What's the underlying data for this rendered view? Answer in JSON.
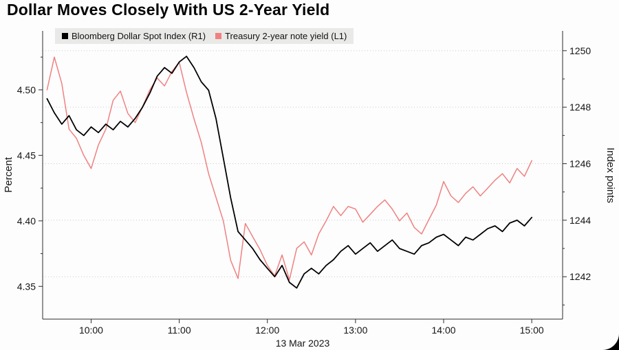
{
  "title": "Dollar Moves Closely With US 2-Year Yield",
  "legend": {
    "items": [
      {
        "label": "Bloomberg Dollar Spot Index (R1)",
        "color": "#000000"
      },
      {
        "label": "Treasury 2-year note yield (L1)",
        "color": "#f08080"
      }
    ]
  },
  "chart_data": {
    "type": "line",
    "title": "Dollar Moves Closely With US 2-Year Yield",
    "x_unit": "hour of day (decimal)",
    "x": [
      9.5,
      9.583,
      9.667,
      9.75,
      9.833,
      9.917,
      10.0,
      10.083,
      10.167,
      10.25,
      10.333,
      10.417,
      10.5,
      10.583,
      10.667,
      10.75,
      10.833,
      10.917,
      11.0,
      11.083,
      11.167,
      11.25,
      11.333,
      11.417,
      11.5,
      11.583,
      11.667,
      11.75,
      11.833,
      11.917,
      12.0,
      12.083,
      12.167,
      12.25,
      12.333,
      12.417,
      12.5,
      12.583,
      12.667,
      12.75,
      12.833,
      12.917,
      13.0,
      13.083,
      13.167,
      13.25,
      13.333,
      13.417,
      13.5,
      13.583,
      13.667,
      13.75,
      13.833,
      13.917,
      14.0,
      14.083,
      14.167,
      14.25,
      14.333,
      14.417,
      14.5,
      14.583,
      14.667,
      14.75,
      14.833,
      14.917,
      15.0
    ],
    "series": [
      {
        "name": "Bloomberg Dollar Spot Index (R1)",
        "axis": "right",
        "color": "#000000",
        "values": [
          1248.3,
          1247.8,
          1247.4,
          1247.7,
          1247.2,
          1247.0,
          1247.3,
          1247.1,
          1247.4,
          1247.2,
          1247.5,
          1247.3,
          1247.6,
          1248.0,
          1248.5,
          1249.1,
          1249.4,
          1249.2,
          1249.6,
          1249.8,
          1249.4,
          1248.9,
          1248.6,
          1247.6,
          1246.2,
          1244.8,
          1243.6,
          1243.3,
          1243.0,
          1242.6,
          1242.3,
          1242.0,
          1242.4,
          1241.8,
          1241.6,
          1242.1,
          1242.3,
          1242.1,
          1242.4,
          1242.6,
          1242.9,
          1243.1,
          1242.8,
          1243.0,
          1243.2,
          1242.9,
          1243.1,
          1243.3,
          1243.0,
          1242.9,
          1242.8,
          1243.1,
          1243.2,
          1243.4,
          1243.5,
          1243.3,
          1243.1,
          1243.4,
          1243.3,
          1243.5,
          1243.7,
          1243.8,
          1243.6,
          1243.9,
          1244.0,
          1243.8,
          1244.1
        ]
      },
      {
        "name": "Treasury 2-year note yield (L1)",
        "axis": "left",
        "color": "#f08080",
        "values": [
          4.5,
          4.525,
          4.505,
          4.47,
          4.463,
          4.45,
          4.44,
          4.458,
          4.47,
          4.492,
          4.499,
          4.482,
          4.475,
          4.487,
          4.5,
          4.509,
          4.503,
          4.514,
          4.521,
          4.498,
          4.478,
          4.46,
          4.436,
          4.418,
          4.4,
          4.37,
          4.356,
          4.398,
          4.388,
          4.378,
          4.366,
          4.358,
          4.374,
          4.355,
          4.379,
          4.384,
          4.374,
          4.39,
          4.4,
          4.411,
          4.404,
          4.411,
          4.409,
          4.399,
          4.405,
          4.411,
          4.416,
          4.409,
          4.4,
          4.406,
          4.395,
          4.39,
          4.401,
          4.412,
          4.43,
          4.419,
          4.414,
          4.421,
          4.426,
          4.419,
          4.425,
          4.431,
          4.436,
          4.429,
          4.44,
          4.434,
          4.446
        ]
      }
    ],
    "x_axis": {
      "range": [
        9.45,
        15.35
      ],
      "ticks": [
        10,
        11,
        12,
        13,
        14,
        15
      ],
      "tick_labels": [
        "10:00",
        "11:00",
        "12:00",
        "13:00",
        "14:00",
        "15:00"
      ],
      "date_label": "13 Mar 2023"
    },
    "left_axis": {
      "title": "Percent",
      "range": [
        4.325,
        4.545
      ],
      "ticks": [
        4.35,
        4.4,
        4.45,
        4.5
      ],
      "tick_labels": [
        "4.35",
        "4.40",
        "4.45",
        "4.50"
      ],
      "minor_ticks": [
        4.375,
        4.425,
        4.475,
        4.525
      ]
    },
    "right_axis": {
      "title": "Index points",
      "range": [
        1240.5,
        1250.7
      ],
      "ticks": [
        1242,
        1244,
        1246,
        1248,
        1250
      ],
      "tick_labels": [
        "1242",
        "1244",
        "1246",
        "1248",
        "1250"
      ],
      "minor_ticks": [
        1241,
        1243,
        1245,
        1247,
        1249
      ]
    },
    "grid": "dotted horizontal lines at right-axis ticks",
    "legend_position": "top"
  }
}
